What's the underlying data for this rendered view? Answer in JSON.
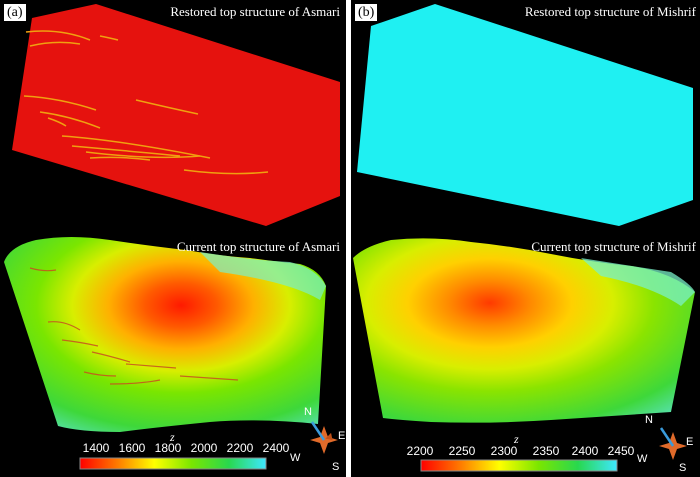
{
  "panels": [
    {
      "tag": "(a)",
      "restored_title": "Restored top structure of Asmari",
      "current_title": "Current top structure of Asmari",
      "restored_color": "#e5120e",
      "colorbar": {
        "label": "z",
        "ticks": [
          "1400",
          "1600",
          "1800",
          "2000",
          "2200",
          "2400"
        ],
        "colors": [
          "#ff0000",
          "#ff7a00",
          "#ffff00",
          "#7ae600",
          "#28d84e",
          "#3ee7ff"
        ]
      }
    },
    {
      "tag": "(b)",
      "restored_title": "Restored top structure of Mishrif",
      "current_title": "Current top structure of Mishrif",
      "restored_color": "#1ff0f2",
      "colorbar": {
        "label": "z",
        "ticks": [
          "2200",
          "2250",
          "2300",
          "2350",
          "2400",
          "2450"
        ],
        "colors": [
          "#ff0000",
          "#ff7a00",
          "#ffff00",
          "#7ae600",
          "#28d84e",
          "#3ee7ff"
        ]
      }
    }
  ],
  "compass": {
    "n": "N",
    "e": "E",
    "s": "S",
    "w": "W",
    "needle_color": "#3a9bdc",
    "rose_color": "#e06a2a"
  }
}
